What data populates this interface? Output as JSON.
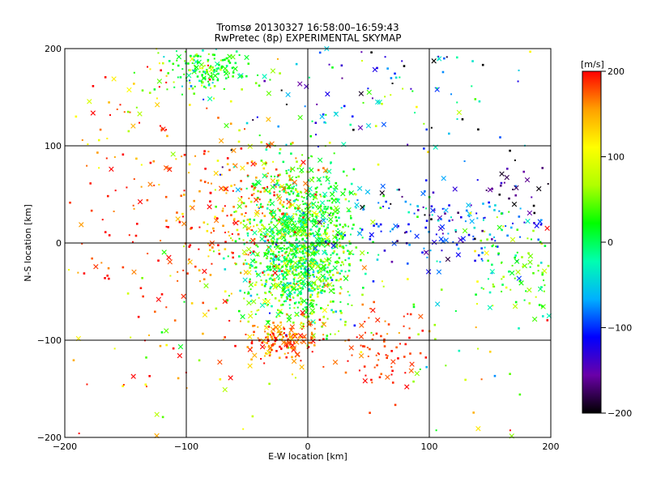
{
  "chart_data": {
    "type": "scatter",
    "title": "Tromsø 20130327 16:58:00–16:59:43",
    "subtitle": "RwPretec (8p) EXPERIMENTAL SKYMAP",
    "xlabel": "E-W location [km]",
    "ylabel": "N-S location [km]",
    "xlim": [
      -200,
      200
    ],
    "ylim": [
      -200,
      200
    ],
    "x_ticks": [
      -200,
      -100,
      0,
      100,
      200
    ],
    "y_ticks": [
      -200,
      -100,
      0,
      100,
      200
    ],
    "grid": true,
    "colorbar": {
      "label": "[m/s]",
      "range": [
        -200,
        200
      ],
      "ticks": [
        200,
        100,
        0,
        -100,
        -200
      ],
      "colors": [
        "#000000",
        "#6a00a8",
        "#0000ff",
        "#00b0ff",
        "#00ffb0",
        "#00ff00",
        "#b0ff00",
        "#ffff00",
        "#ffa000",
        "#ff0000"
      ]
    },
    "markers": [
      "dot",
      "x"
    ],
    "clusters": [
      {
        "x": -5,
        "y": 10,
        "sx": 22,
        "sy": 35,
        "v": 20,
        "sv": 35,
        "n": 900
      },
      {
        "x": -15,
        "y": -40,
        "sx": 25,
        "sy": 25,
        "v": 30,
        "sv": 50,
        "n": 350
      },
      {
        "x": -20,
        "y": -100,
        "sx": 15,
        "sy": 10,
        "v": 175,
        "sv": 25,
        "n": 170
      },
      {
        "x": 60,
        "y": -115,
        "sx": 15,
        "sy": 20,
        "v": 185,
        "sv": 15,
        "n": 80
      },
      {
        "x": -85,
        "y": 178,
        "sx": 20,
        "sy": 12,
        "v": 20,
        "sv": 40,
        "n": 170
      },
      {
        "x": 110,
        "y": 20,
        "sx": 45,
        "sy": 22,
        "v": -100,
        "sv": 40,
        "n": 180
      },
      {
        "x": 170,
        "y": -25,
        "sx": 20,
        "sy": 25,
        "v": 30,
        "sv": 40,
        "n": 90
      },
      {
        "x": 175,
        "y": 60,
        "sx": 15,
        "sy": 20,
        "v": -180,
        "sv": 20,
        "n": 25
      },
      {
        "x": -50,
        "y": 40,
        "sx": 30,
        "sy": 40,
        "v": 160,
        "sv": 40,
        "n": 220
      },
      {
        "x": -120,
        "y": 20,
        "sx": 45,
        "sy": 60,
        "v": 180,
        "sv": 25,
        "n": 130
      },
      {
        "x": 60,
        "y": 150,
        "sx": 70,
        "sy": 40,
        "v": -60,
        "sv": 90,
        "n": 140
      },
      {
        "x": -150,
        "y": 150,
        "sx": 30,
        "sy": 40,
        "v": 150,
        "sv": 50,
        "n": 50
      },
      {
        "x": -100,
        "y": -100,
        "sx": 60,
        "sy": 60,
        "v": 130,
        "sv": 80,
        "n": 60
      },
      {
        "x": 120,
        "y": -80,
        "sx": 50,
        "sy": 60,
        "v": 80,
        "sv": 100,
        "n": 60
      }
    ]
  }
}
